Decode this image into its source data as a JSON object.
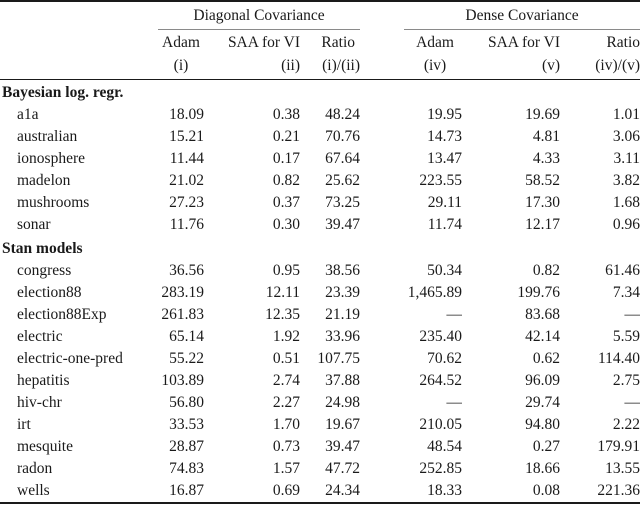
{
  "table": {
    "groups": [
      {
        "label": "Diagonal Covariance"
      },
      {
        "label": "Dense Covariance"
      }
    ],
    "columns": [
      {
        "label": "Adam",
        "sub": "(i)"
      },
      {
        "label": "SAA for VI",
        "sub": "(ii)"
      },
      {
        "label": "Ratio",
        "sub": "(i)/(ii)"
      },
      {
        "label": "Adam",
        "sub": "(iv)"
      },
      {
        "label": "SAA for VI",
        "sub": "(v)"
      },
      {
        "label": "Ratio",
        "sub": "(iv)/(v)"
      }
    ],
    "missing_value_symbol": "—",
    "sections": [
      {
        "title": "Bayesian log. regr.",
        "rows": [
          {
            "name": "a1a",
            "values": [
              "18.09",
              "0.38",
              "48.24",
              "19.95",
              "19.69",
              "1.01"
            ]
          },
          {
            "name": "australian",
            "values": [
              "15.21",
              "0.21",
              "70.76",
              "14.73",
              "4.81",
              "3.06"
            ]
          },
          {
            "name": "ionosphere",
            "values": [
              "11.44",
              "0.17",
              "67.64",
              "13.47",
              "4.33",
              "3.11"
            ]
          },
          {
            "name": "madelon",
            "values": [
              "21.02",
              "0.82",
              "25.62",
              "223.55",
              "58.52",
              "3.82"
            ]
          },
          {
            "name": "mushrooms",
            "values": [
              "27.23",
              "0.37",
              "73.25",
              "29.11",
              "17.30",
              "1.68"
            ]
          },
          {
            "name": "sonar",
            "values": [
              "11.76",
              "0.30",
              "39.47",
              "11.74",
              "12.17",
              "0.96"
            ]
          }
        ]
      },
      {
        "title": "Stan models",
        "rows": [
          {
            "name": "congress",
            "values": [
              "36.56",
              "0.95",
              "38.56",
              "50.34",
              "0.82",
              "61.46"
            ]
          },
          {
            "name": "election88",
            "values": [
              "283.19",
              "12.11",
              "23.39",
              "1,465.89",
              "199.76",
              "7.34"
            ]
          },
          {
            "name": "election88Exp",
            "values": [
              "261.83",
              "12.35",
              "21.19",
              "—",
              "83.68",
              "—"
            ]
          },
          {
            "name": "electric",
            "values": [
              "65.14",
              "1.92",
              "33.96",
              "235.40",
              "42.14",
              "5.59"
            ]
          },
          {
            "name": "electric-one-pred",
            "values": [
              "55.22",
              "0.51",
              "107.75",
              "70.62",
              "0.62",
              "114.40"
            ]
          },
          {
            "name": "hepatitis",
            "values": [
              "103.89",
              "2.74",
              "37.88",
              "264.52",
              "96.09",
              "2.75"
            ]
          },
          {
            "name": "hiv-chr",
            "values": [
              "56.80",
              "2.27",
              "24.98",
              "—",
              "29.74",
              "—"
            ]
          },
          {
            "name": "irt",
            "values": [
              "33.53",
              "1.70",
              "19.67",
              "210.05",
              "94.80",
              "2.22"
            ]
          },
          {
            "name": "mesquite",
            "values": [
              "28.87",
              "0.73",
              "39.47",
              "48.54",
              "0.27",
              "179.91"
            ]
          },
          {
            "name": "radon",
            "values": [
              "74.83",
              "1.57",
              "47.72",
              "252.85",
              "18.66",
              "13.55"
            ]
          },
          {
            "name": "wells",
            "values": [
              "16.87",
              "0.69",
              "24.34",
              "18.33",
              "0.08",
              "221.36"
            ]
          }
        ]
      }
    ]
  },
  "colors": {
    "text": "#1a1a1a",
    "rule_heavy": "#1a1a1a",
    "rule_light": "#8a8a8a"
  }
}
